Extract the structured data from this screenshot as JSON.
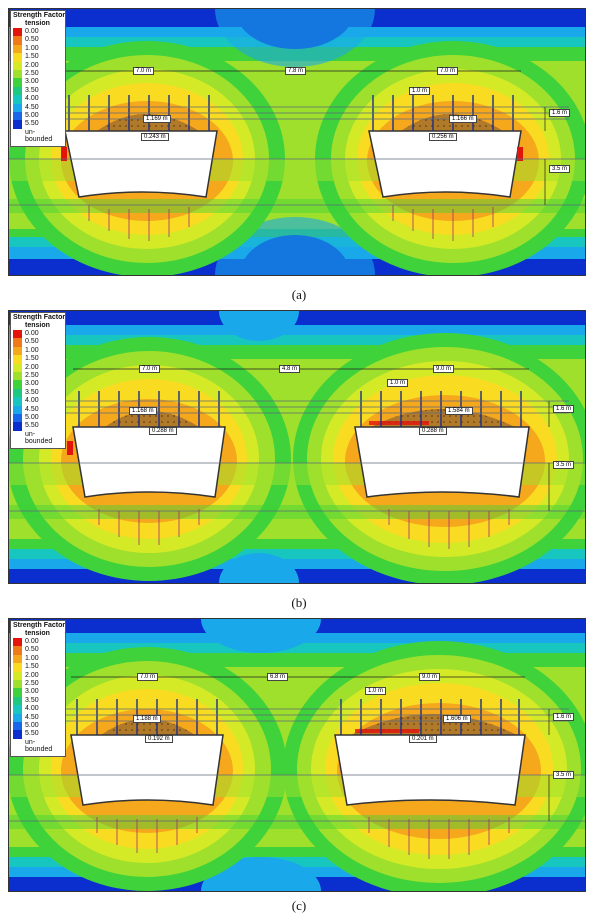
{
  "legend": {
    "title": "Strength Factor",
    "subtitle": "tension",
    "items": [
      {
        "label": "0.00",
        "color": "#e3140c"
      },
      {
        "label": "0.50",
        "color": "#f07a1a"
      },
      {
        "label": "1.00",
        "color": "#f6a81d"
      },
      {
        "label": "1.50",
        "color": "#f9dc22"
      },
      {
        "label": "2.00",
        "color": "#d4ea27"
      },
      {
        "label": "2.50",
        "color": "#9ee02c"
      },
      {
        "label": "3.00",
        "color": "#3fd23a"
      },
      {
        "label": "3.50",
        "color": "#1fc87f"
      },
      {
        "label": "4.00",
        "color": "#18c6c0"
      },
      {
        "label": "4.50",
        "color": "#19a9ea"
      },
      {
        "label": "5.00",
        "color": "#1866ea"
      },
      {
        "label": "5.50",
        "color": "#0b2fcf"
      }
    ],
    "tail_1": "un-",
    "tail_2": "bounded"
  },
  "panels": [
    {
      "caption": "(a)",
      "labels": {
        "left_span": "7.0 m",
        "pillar": "7.8 m",
        "right_span": "7.0 m",
        "bolt_spacing": "1.0 m",
        "left_fail": "1.169 m",
        "left_sag": "0.243 m",
        "right_fail": "1.166 m",
        "right_sag": "0.256 m",
        "bolt_len": "1.6 m",
        "height": "3.5 m"
      }
    },
    {
      "caption": "(b)",
      "labels": {
        "left_span": "7.0 m",
        "pillar": "4.8 m",
        "right_span": "9.0 m",
        "bolt_spacing": "1.0 m",
        "left_fail": "1.168 m",
        "left_sag": "0.288 m",
        "right_fail": "1.584 m",
        "right_sag": "0.288 m",
        "bolt_len": "1.6 m",
        "height": "3.5 m"
      }
    },
    {
      "caption": "(c)",
      "labels": {
        "left_span": "7.0 m",
        "pillar": "6.8 m",
        "right_span": "9.0 m",
        "bolt_spacing": "1.0 m",
        "left_fail": "1.188 m",
        "left_sag": "0.192 m",
        "right_fail": "1.606 m",
        "right_sag": "0.201 m",
        "bolt_len": "1.6 m",
        "height": "3.5 m"
      }
    }
  ]
}
